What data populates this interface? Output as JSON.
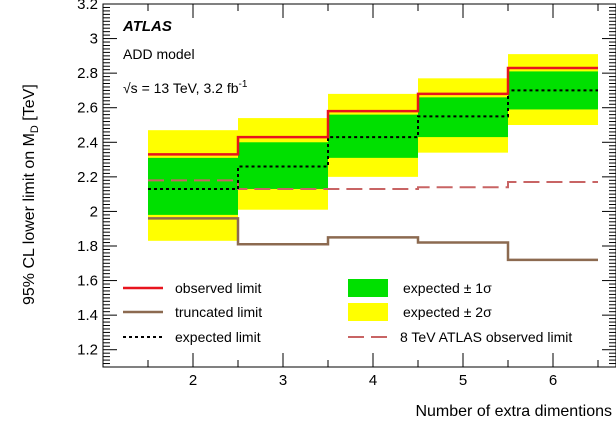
{
  "chart_data": {
    "type": "step-limit",
    "experiment_label": "ATLAS",
    "model_label": "ADD model",
    "energy_label": "√s = 13 TeV, 3.2 fb",
    "energy_superscript": "-1",
    "xlabel": "Number of extra dimentions",
    "ylabel_main": "95% CL lower limit on M",
    "ylabel_sub": "D",
    "ylabel_unit": " [TeV]",
    "xlim": [
      1.0,
      6.7
    ],
    "ylim": [
      1.1,
      3.2
    ],
    "x_ticks": [
      "2",
      "3",
      "4",
      "5",
      "6"
    ],
    "y_ticks": [
      "1.2",
      "1.4",
      "1.6",
      "1.8",
      "2",
      "2.2",
      "2.4",
      "2.6",
      "2.8",
      "3",
      "3.2"
    ],
    "x": [
      2,
      3,
      4,
      5,
      6
    ],
    "series": [
      {
        "key": "observed",
        "name": "observed limit",
        "values": [
          2.33,
          2.43,
          2.58,
          2.68,
          2.83
        ],
        "color": "#e8141e"
      },
      {
        "key": "truncated",
        "name": "truncated limit",
        "values": [
          1.96,
          1.81,
          1.85,
          1.82,
          1.72
        ],
        "color": "#8c6a50"
      },
      {
        "key": "expected",
        "name": "expected limit",
        "values": [
          2.13,
          2.26,
          2.43,
          2.55,
          2.7
        ],
        "color": "#000000"
      },
      {
        "key": "run1",
        "name": "8 TeV ATLAS observed limit",
        "values": [
          2.18,
          2.13,
          2.13,
          2.14,
          2.17
        ],
        "color": "#c86464"
      }
    ],
    "bands": [
      {
        "key": "two_sigma",
        "name": "expected ± 2σ",
        "low": [
          1.83,
          2.01,
          2.2,
          2.34,
          2.5
        ],
        "high": [
          2.47,
          2.54,
          2.68,
          2.77,
          2.91
        ],
        "color": "#ffff00"
      },
      {
        "key": "one_sigma",
        "name": "expected ± 1σ",
        "low": [
          1.98,
          2.13,
          2.31,
          2.43,
          2.59
        ],
        "high": [
          2.31,
          2.4,
          2.56,
          2.66,
          2.81
        ],
        "color": "#00e000"
      }
    ]
  }
}
